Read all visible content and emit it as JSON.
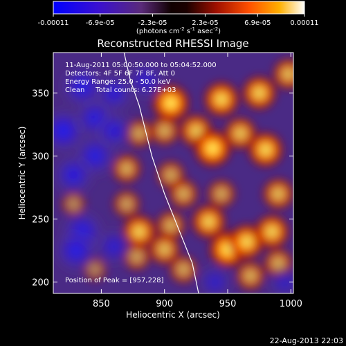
{
  "colorbar": {
    "tick_labels": [
      "-0.00011",
      "-6.9e-05",
      "-2.3e-05",
      "2.3e-05",
      "6.9e-05",
      "0.00011"
    ],
    "units_label": "(photons cm",
    "units_exp1": "-2",
    "units_mid": " s",
    "units_exp2": "-1",
    "units_tail": " asec",
    "units_exp3": "-2",
    "units_close": ")",
    "min": -0.00011,
    "max": 0.00011,
    "colormap": "red-temperature with blue negatives",
    "colors": [
      "#0a0aff",
      "#3a16c8",
      "#4a2a8a",
      "#2a0000",
      "#a01000",
      "#ff5000",
      "#ffb000",
      "#ffffe0"
    ]
  },
  "chart_data": {
    "type": "heatmap",
    "title": "Reconstructed RHESSI Image",
    "xlabel": "Heliocentric X (arcsec)",
    "ylabel": "Heliocentric Y (arcsec)",
    "xlim": [
      812,
      1002
    ],
    "ylim": [
      191,
      382
    ],
    "xticks": [
      850,
      900,
      950,
      1000
    ],
    "yticks": [
      200,
      250,
      300,
      350
    ],
    "xtick_labels": [
      "850",
      "900",
      "950",
      "1000"
    ],
    "ytick_labels": [
      "200",
      "250",
      "300",
      "350"
    ],
    "blobs": [
      {
        "x": 905,
        "y": 342,
        "intensity": 1.0
      },
      {
        "x": 945,
        "y": 345,
        "intensity": 0.9
      },
      {
        "x": 975,
        "y": 350,
        "intensity": 0.85
      },
      {
        "x": 998,
        "y": 365,
        "intensity": 0.7
      },
      {
        "x": 925,
        "y": 320,
        "intensity": 0.8
      },
      {
        "x": 960,
        "y": 318,
        "intensity": 0.75
      },
      {
        "x": 938,
        "y": 306,
        "intensity": 1.0
      },
      {
        "x": 980,
        "y": 305,
        "intensity": 0.9
      },
      {
        "x": 880,
        "y": 318,
        "intensity": 0.55
      },
      {
        "x": 900,
        "y": 320,
        "intensity": 0.6
      },
      {
        "x": 870,
        "y": 290,
        "intensity": 0.6
      },
      {
        "x": 905,
        "y": 285,
        "intensity": 0.55
      },
      {
        "x": 915,
        "y": 270,
        "intensity": 0.6
      },
      {
        "x": 945,
        "y": 270,
        "intensity": 0.55
      },
      {
        "x": 990,
        "y": 270,
        "intensity": 0.7
      },
      {
        "x": 870,
        "y": 262,
        "intensity": 0.5
      },
      {
        "x": 828,
        "y": 262,
        "intensity": 0.35
      },
      {
        "x": 880,
        "y": 240,
        "intensity": 0.85
      },
      {
        "x": 905,
        "y": 245,
        "intensity": 0.6
      },
      {
        "x": 935,
        "y": 248,
        "intensity": 0.85
      },
      {
        "x": 950,
        "y": 226,
        "intensity": 1.0
      },
      {
        "x": 965,
        "y": 232,
        "intensity": 0.9
      },
      {
        "x": 985,
        "y": 240,
        "intensity": 0.85
      },
      {
        "x": 900,
        "y": 226,
        "intensity": 0.7
      },
      {
        "x": 878,
        "y": 220,
        "intensity": 0.5
      },
      {
        "x": 915,
        "y": 210,
        "intensity": 0.55
      },
      {
        "x": 968,
        "y": 205,
        "intensity": 0.6
      },
      {
        "x": 990,
        "y": 215,
        "intensity": 0.6
      },
      {
        "x": 845,
        "y": 210,
        "intensity": 0.3
      },
      {
        "x": 820,
        "y": 320,
        "intensity": -0.9
      },
      {
        "x": 845,
        "y": 330,
        "intensity": -0.7
      },
      {
        "x": 860,
        "y": 320,
        "intensity": -0.6
      },
      {
        "x": 845,
        "y": 300,
        "intensity": -0.75
      },
      {
        "x": 828,
        "y": 285,
        "intensity": -0.7
      },
      {
        "x": 860,
        "y": 350,
        "intensity": -0.6
      },
      {
        "x": 885,
        "y": 360,
        "intensity": -0.5
      },
      {
        "x": 835,
        "y": 355,
        "intensity": -0.8
      },
      {
        "x": 835,
        "y": 240,
        "intensity": -0.8
      },
      {
        "x": 830,
        "y": 225,
        "intensity": -0.8
      },
      {
        "x": 860,
        "y": 228,
        "intensity": -0.5
      },
      {
        "x": 940,
        "y": 200,
        "intensity": -0.4
      },
      {
        "x": 995,
        "y": 200,
        "intensity": -0.35
      }
    ],
    "limb_line": [
      [
        868,
        382
      ],
      [
        873,
        360
      ],
      [
        880,
        340
      ],
      [
        890,
        300
      ],
      [
        900,
        270
      ],
      [
        912,
        240
      ],
      [
        922,
        215
      ],
      [
        927,
        191
      ]
    ],
    "annotations": [
      "11-Aug-2011 05:00:50.000 to 05:04:52.000",
      "Detectors: 4F 5F 6F 7F 8F, Att 0",
      "Energy Range: 25.0 - 50.0 keV",
      "Clean     Total counts: 6.27E+03"
    ],
    "peak_label": "Position of Peak = [957,228]"
  },
  "footer": {
    "timestamp": "22-Aug-2013 22:03"
  }
}
